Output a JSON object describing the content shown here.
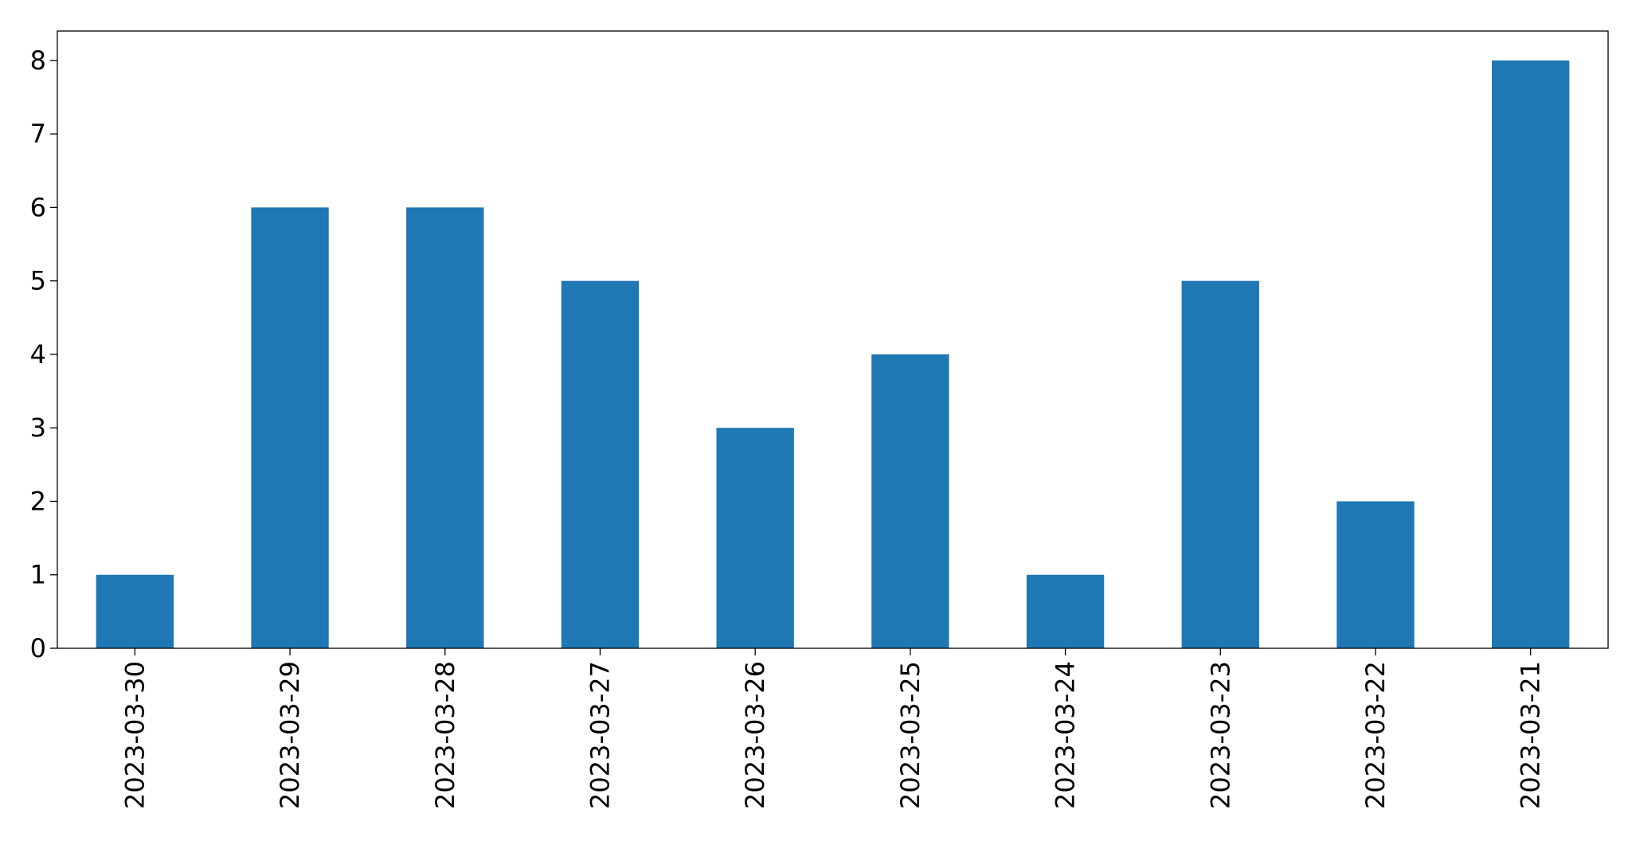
{
  "chart_data": {
    "type": "bar",
    "categories": [
      "2023-03-30",
      "2023-03-29",
      "2023-03-28",
      "2023-03-27",
      "2023-03-26",
      "2023-03-25",
      "2023-03-24",
      "2023-03-23",
      "2023-03-22",
      "2023-03-21"
    ],
    "values": [
      1,
      6,
      6,
      5,
      3,
      4,
      1,
      5,
      2,
      8
    ],
    "color": "#1f77b4",
    "ylim": [
      0,
      8.4
    ],
    "yticks": [
      0,
      1,
      2,
      3,
      4,
      5,
      6,
      7,
      8
    ],
    "grid": false
  }
}
